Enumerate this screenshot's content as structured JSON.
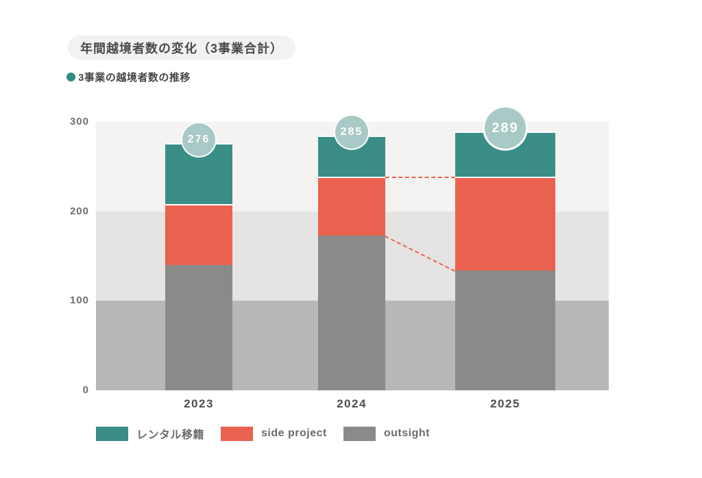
{
  "title": "年間越境者数の変化（3事業合計）",
  "subtitle": "3事業の越境者数の推移",
  "chart_data": {
    "type": "bar",
    "stacked": true,
    "title": "年間越境者数の変化（3事業合計）",
    "subtitle": "3事業の越境者数の推移",
    "categories": [
      "2023",
      "2024",
      "2025"
    ],
    "series": [
      {
        "name": "outsight",
        "color": "#8a8a89",
        "values": [
          140,
          173,
          134
        ]
      },
      {
        "name": "side project",
        "color": "#ea6150",
        "values": [
          68,
          66,
          105
        ]
      },
      {
        "name": "レンタル移籍",
        "color": "#3a8e87",
        "values": [
          68,
          46,
          50
        ]
      }
    ],
    "totals": [
      276,
      285,
      289
    ],
    "total_labels": [
      "276",
      "285",
      "289"
    ],
    "ylim": [
      0,
      300
    ],
    "y_tick_labels": [
      "300",
      "200",
      "100",
      "0"
    ],
    "grid_bands": [
      "#f4f3f1",
      "#e5e4e2",
      "#b9b8b6"
    ],
    "legend_position": "bottom",
    "legend": [
      {
        "label": "レンタル移籍",
        "color": "#3a8e87"
      },
      {
        "label": "side project",
        "color": "#ea6150"
      },
      {
        "label": "outsight",
        "color": "#8a8a89"
      }
    ],
    "annotations": [
      {
        "type": "dashed-line",
        "from_category": "2024",
        "from_value": 239,
        "to_category": "2025",
        "to_value": 239
      },
      {
        "type": "dashed-line",
        "from_category": "2024",
        "from_value": 173,
        "to_category": "2025",
        "to_value": 134
      }
    ],
    "annotation_color": "#e9604e",
    "bubble_color": "#a9c9c6"
  }
}
